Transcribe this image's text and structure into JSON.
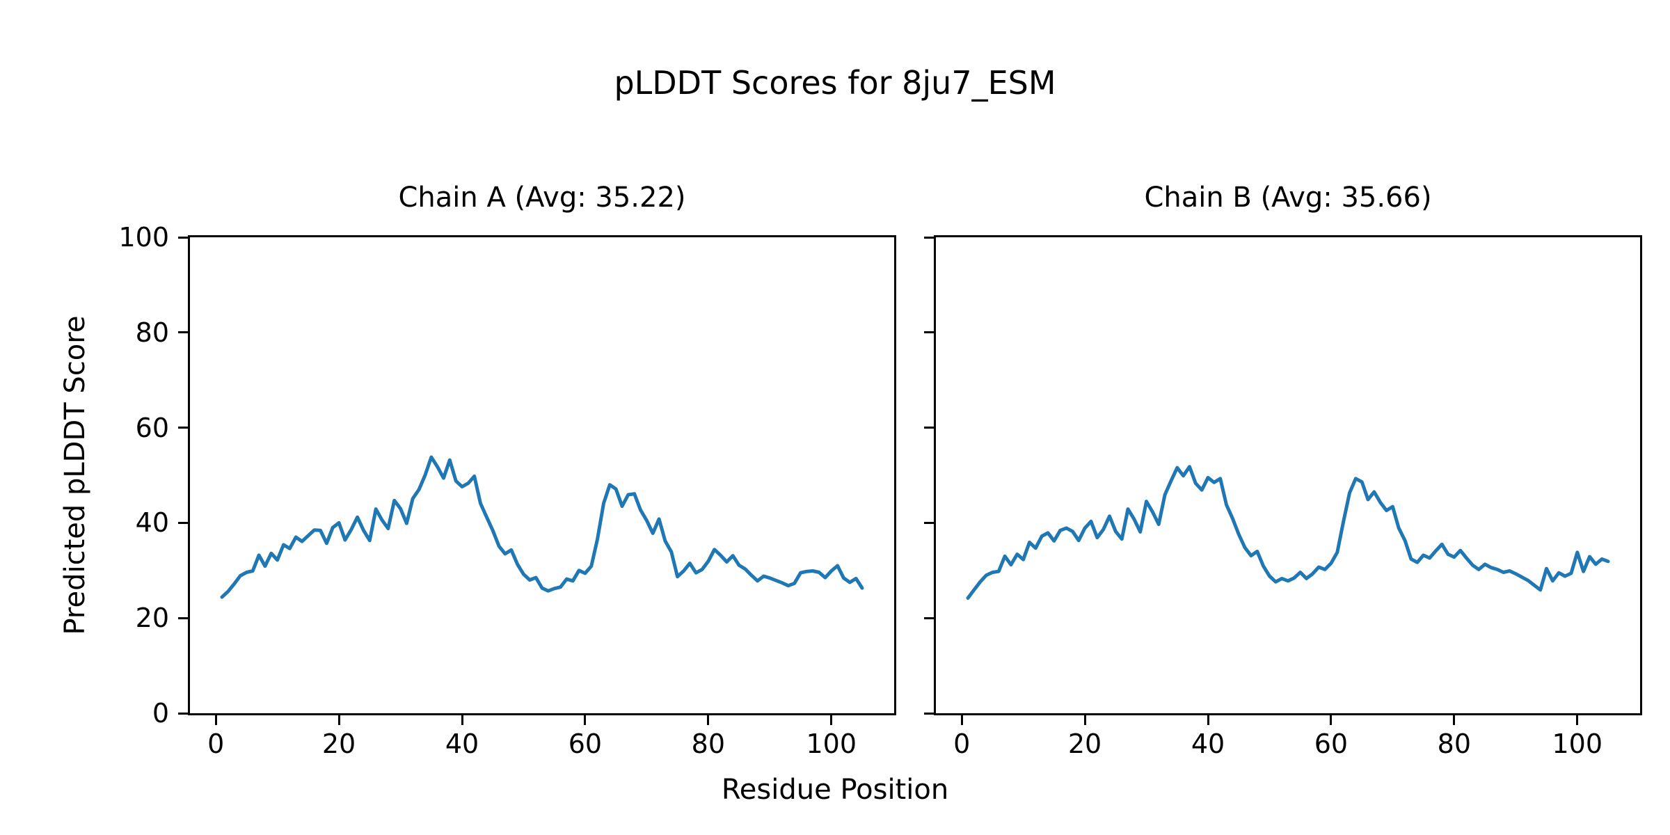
{
  "figure": {
    "title": "pLDDT Scores for 8ju7_ESM",
    "xlabel": "Residue Position",
    "ylabel": "Predicted pLDDT Score",
    "background_color": "#ffffff",
    "text_color": "#000000",
    "axis_color": "#000000"
  },
  "chart_data": [
    {
      "type": "line",
      "title": "Chain A (Avg: 35.22)",
      "avg_plddt": 35.22,
      "line_color": "#1f77b4",
      "grid": false,
      "legend": "none",
      "xlim": [
        -4.2,
        110.2
      ],
      "ylim": [
        0,
        100
      ],
      "xticks": [
        0,
        20,
        40,
        60,
        80,
        100
      ],
      "yticks": [
        0,
        20,
        40,
        60,
        80,
        100
      ],
      "show_ytick_labels": true,
      "series": [
        {
          "name": "Chain A pLDDT",
          "x_start": 1,
          "x_step": 1,
          "values": [
            24.4,
            25.6,
            27.2,
            28.9,
            29.6,
            29.9,
            33.2,
            30.9,
            33.6,
            32.2,
            35.4,
            34.6,
            37.0,
            36.1,
            37.3,
            38.5,
            38.4,
            35.7,
            39.0,
            40.0,
            36.4,
            38.6,
            41.2,
            38.4,
            36.3,
            42.9,
            40.6,
            38.8,
            44.7,
            43.0,
            39.9,
            45.1,
            47.0,
            50.0,
            53.8,
            51.8,
            49.4,
            53.2,
            48.8,
            47.6,
            48.3,
            49.8,
            44.1,
            41.2,
            38.4,
            35.1,
            33.5,
            34.3,
            31.3,
            29.2,
            28.0,
            28.5,
            26.3,
            25.7,
            26.2,
            26.5,
            28.2,
            27.8,
            30.0,
            29.4,
            30.9,
            36.6,
            44.1,
            48.0,
            47.1,
            43.5,
            45.9,
            46.1,
            42.7,
            40.5,
            37.8,
            40.8,
            36.2,
            33.9,
            28.7,
            29.9,
            31.5,
            29.5,
            30.2,
            31.9,
            34.4,
            33.2,
            31.8,
            33.1,
            31.1,
            30.3,
            29.0,
            27.8,
            28.8,
            28.4,
            27.9,
            27.4,
            26.8,
            27.3,
            29.5,
            29.8,
            29.9,
            29.6,
            28.5,
            29.9,
            31.0,
            28.4,
            27.5,
            28.3,
            26.3
          ]
        }
      ]
    },
    {
      "type": "line",
      "title": "Chain B (Avg: 35.66)",
      "avg_plddt": 35.66,
      "line_color": "#1f77b4",
      "grid": false,
      "legend": "none",
      "xlim": [
        -4.2,
        110.2
      ],
      "ylim": [
        0,
        100
      ],
      "xticks": [
        0,
        20,
        40,
        60,
        80,
        100
      ],
      "yticks": [
        0,
        20,
        40,
        60,
        80,
        100
      ],
      "show_ytick_labels": false,
      "series": [
        {
          "name": "Chain B pLDDT",
          "x_start": 1,
          "x_step": 1,
          "values": [
            24.2,
            25.9,
            27.6,
            29.0,
            29.6,
            29.8,
            33.0,
            31.2,
            33.4,
            32.3,
            35.9,
            34.7,
            37.2,
            37.9,
            36.2,
            38.4,
            38.9,
            38.2,
            36.3,
            38.9,
            40.3,
            36.9,
            38.6,
            41.4,
            38.2,
            36.6,
            42.9,
            40.8,
            38.1,
            44.5,
            42.3,
            39.7,
            45.9,
            48.8,
            51.6,
            49.9,
            51.8,
            48.3,
            46.9,
            49.5,
            48.5,
            49.3,
            43.8,
            40.9,
            37.6,
            34.8,
            33.1,
            34.0,
            30.9,
            28.8,
            27.6,
            28.3,
            27.8,
            28.4,
            29.6,
            28.3,
            29.3,
            30.7,
            30.2,
            31.5,
            33.8,
            40.2,
            46.3,
            49.3,
            48.6,
            44.9,
            46.5,
            44.3,
            42.6,
            43.4,
            38.9,
            36.3,
            32.4,
            31.7,
            33.2,
            32.6,
            34.1,
            35.5,
            33.4,
            32.8,
            34.2,
            32.6,
            31.1,
            30.2,
            31.3,
            30.6,
            30.2,
            29.6,
            29.9,
            29.3,
            28.6,
            27.9,
            26.9,
            25.9,
            30.4,
            27.8,
            29.5,
            28.8,
            29.4,
            33.8,
            29.8,
            32.9,
            31.3,
            32.4,
            31.9
          ]
        }
      ]
    }
  ]
}
